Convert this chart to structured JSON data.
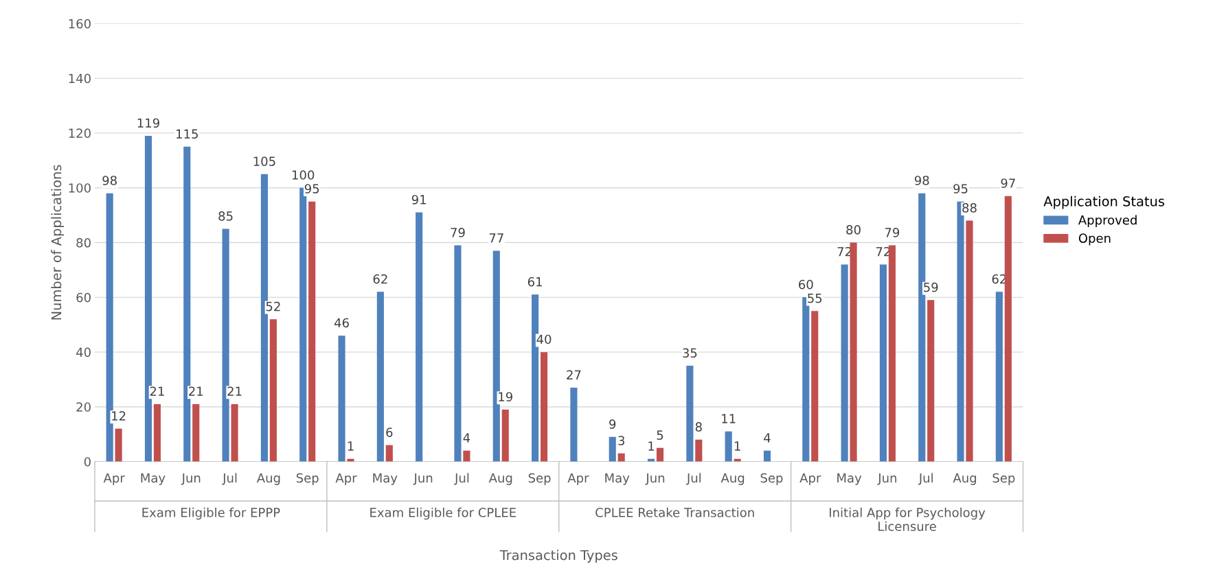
{
  "chart_data": {
    "type": "bar",
    "xlabel": "Transaction Types",
    "ylabel": "Number of Applications",
    "legend_title": "Application Status",
    "legend": "right",
    "categories": [
      "Apr",
      "May",
      "Jun",
      "Jul",
      "Aug",
      "Sep",
      "Apr",
      "May",
      "Jun",
      "Jul",
      "Aug",
      "Sep",
      "Apr",
      "May",
      "Jun",
      "Jul",
      "Aug",
      "Sep",
      "Apr",
      "May",
      "Jun",
      "Jul",
      "Aug",
      "Sep"
    ],
    "annotations": [
      "Exam Eligible for EPPP",
      "Exam Eligible for CPLEE",
      "CPLEE Retake Transaction",
      "Initial App for Psychology\nLicensure"
    ],
    "series": [
      {
        "name": "Approved",
        "color": "#4f81bd",
        "values": [
          98,
          119,
          115,
          85,
          105,
          100,
          46,
          62,
          91,
          79,
          77,
          61,
          27,
          9,
          1,
          35,
          11,
          4,
          60,
          72,
          72,
          98,
          95,
          62
        ]
      },
      {
        "name": "Open",
        "color": "#c0504d",
        "values": [
          12,
          21,
          21,
          21,
          52,
          95,
          1,
          6,
          null,
          4,
          19,
          40,
          null,
          3,
          5,
          8,
          1,
          null,
          55,
          80,
          79,
          59,
          88,
          97
        ]
      }
    ],
    "ylim": [
      0,
      160
    ],
    "yticks": [
      0,
      20,
      40,
      60,
      80,
      100,
      120,
      140,
      160
    ],
    "grid": "y",
    "data_labels": true
  }
}
